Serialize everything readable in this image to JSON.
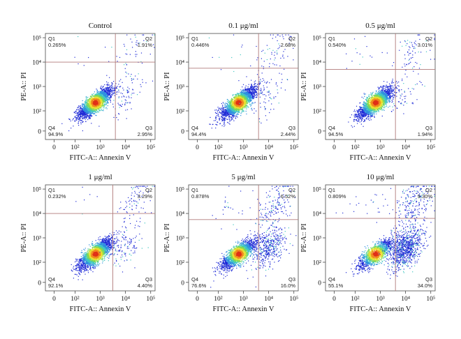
{
  "chart_data": [
    {
      "type": "scatter",
      "title": "Control",
      "xlabel": "FITC-A:: Annexin V",
      "ylabel": "PE-A:: PI",
      "x_ticks": [
        "0",
        "10²",
        "10³",
        "10⁴",
        "10⁵"
      ],
      "y_ticks": [
        "0",
        "10²",
        "10³",
        "10⁴",
        "10⁵"
      ],
      "gate": {
        "x": 3.6,
        "y": 4.0
      },
      "quadrants": [
        {
          "name": "Q1",
          "value": "0.265%",
          "position": "top-left"
        },
        {
          "name": "Q2",
          "value": "1.91%",
          "position": "top-right"
        },
        {
          "name": "Q3",
          "value": "2.95%",
          "position": "bottom-right"
        },
        {
          "name": "Q4",
          "value": "94.9%",
          "position": "bottom-left"
        }
      ]
    },
    {
      "type": "scatter",
      "title": "0.1 μg/ml",
      "xlabel": "FITC-A:: Annexin V",
      "ylabel": "PE-A:: PI",
      "x_ticks": [
        "0",
        "10²",
        "10³",
        "10⁴",
        "10⁵"
      ],
      "y_ticks": [
        "0",
        "10²",
        "10³",
        "10⁴",
        "10⁵"
      ],
      "gate": {
        "x": 3.6,
        "y": 3.75
      },
      "quadrants": [
        {
          "name": "Q1",
          "value": "0.446%",
          "position": "top-left"
        },
        {
          "name": "Q2",
          "value": "2.68%",
          "position": "top-right"
        },
        {
          "name": "Q3",
          "value": "2.44%",
          "position": "bottom-right"
        },
        {
          "name": "Q4",
          "value": "94.4%",
          "position": "bottom-left"
        }
      ]
    },
    {
      "type": "scatter",
      "title": "0.5 μg/ml",
      "xlabel": "FITC-A:: Annexin V",
      "ylabel": "PE-A:: PI",
      "x_ticks": [
        "0",
        "10²",
        "10³",
        "10⁴",
        "10⁵"
      ],
      "y_ticks": [
        "0",
        "10²",
        "10³",
        "10⁴",
        "10⁵"
      ],
      "gate": {
        "x": 3.6,
        "y": 3.7
      },
      "quadrants": [
        {
          "name": "Q1",
          "value": "0.540%",
          "position": "top-left"
        },
        {
          "name": "Q2",
          "value": "3.01%",
          "position": "top-right"
        },
        {
          "name": "Q3",
          "value": "1.94%",
          "position": "bottom-right"
        },
        {
          "name": "Q4",
          "value": "94.5%",
          "position": "bottom-left"
        }
      ]
    },
    {
      "type": "scatter",
      "title": "1 μg/ml",
      "xlabel": "FITC-A:: Annexin V",
      "ylabel": "PE-A:: PI",
      "x_ticks": [
        "0",
        "10²",
        "10³",
        "10⁴",
        "10⁵"
      ],
      "y_ticks": [
        "0",
        "10²",
        "10³",
        "10⁴",
        "10⁵"
      ],
      "gate": {
        "x": 3.5,
        "y": 4.0
      },
      "quadrants": [
        {
          "name": "Q1",
          "value": "0.232%",
          "position": "top-left"
        },
        {
          "name": "Q2",
          "value": "3.29%",
          "position": "top-right"
        },
        {
          "name": "Q3",
          "value": "4.40%",
          "position": "bottom-right"
        },
        {
          "name": "Q4",
          "value": "92.1%",
          "position": "bottom-left"
        }
      ]
    },
    {
      "type": "scatter",
      "title": "5 μg/ml",
      "xlabel": "FITC-A:: Annexin V",
      "ylabel": "PE-A:: PI",
      "x_ticks": [
        "0",
        "10²",
        "10³",
        "10⁴",
        "10⁵"
      ],
      "y_ticks": [
        "0",
        "10²",
        "10³",
        "10⁴",
        "10⁵"
      ],
      "gate": {
        "x": 3.6,
        "y": 3.75
      },
      "quadrants": [
        {
          "name": "Q1",
          "value": "0.878%",
          "position": "top-left"
        },
        {
          "name": "Q2",
          "value": "6.52%",
          "position": "top-right"
        },
        {
          "name": "Q3",
          "value": "16.0%",
          "position": "bottom-right"
        },
        {
          "name": "Q4",
          "value": "76.6%",
          "position": "bottom-left"
        }
      ]
    },
    {
      "type": "scatter",
      "title": "10 μg/ml",
      "xlabel": "FITC-A:: Annexin V",
      "ylabel": "PE-A:: PI",
      "x_ticks": [
        "0",
        "10²",
        "10³",
        "10⁴",
        "10⁵"
      ],
      "y_ticks": [
        "0",
        "10²",
        "10³",
        "10⁴",
        "10⁵"
      ],
      "gate": {
        "x": 3.6,
        "y": 3.8
      },
      "quadrants": [
        {
          "name": "Q1",
          "value": "0.809%",
          "position": "top-left"
        },
        {
          "name": "Q2",
          "value": "9.30%",
          "position": "top-right"
        },
        {
          "name": "Q3",
          "value": "34.0%",
          "position": "bottom-right"
        },
        {
          "name": "Q4",
          "value": "55.1%",
          "position": "bottom-left"
        }
      ]
    }
  ],
  "colors": {
    "frame": "#4a4a4a",
    "gate_line": "#b07a7a",
    "density": [
      "#1f2bd6",
      "#2f8fe0",
      "#3fc6c0",
      "#7ed957",
      "#e8e030",
      "#f08a1e",
      "#e03018"
    ]
  }
}
